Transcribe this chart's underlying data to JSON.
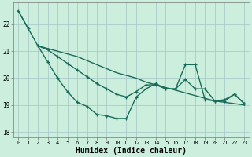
{
  "bg_color": "#cceedd",
  "grid_color": "#aacccc",
  "line_color": "#1a6b5a",
  "xlabel": "Humidex (Indice chaleur)",
  "xlim": [
    -0.5,
    23.5
  ],
  "ylim": [
    17.8,
    22.8
  ],
  "yticks": [
    18,
    19,
    20,
    21,
    22
  ],
  "xticks": [
    0,
    1,
    2,
    3,
    4,
    5,
    6,
    7,
    8,
    9,
    10,
    11,
    12,
    13,
    14,
    15,
    16,
    17,
    18,
    19,
    20,
    21,
    22,
    23
  ],
  "series": [
    {
      "x": [
        0,
        1,
        2,
        3,
        4,
        5,
        6,
        7,
        8,
        9,
        10,
        11,
        12,
        13,
        14,
        15,
        16,
        17,
        18,
        19,
        20,
        21,
        22,
        23
      ],
      "y": [
        22.5,
        21.85,
        21.2,
        21.1,
        21.0,
        20.9,
        20.8,
        20.65,
        20.5,
        20.35,
        20.2,
        20.1,
        20.0,
        19.85,
        19.75,
        19.65,
        19.55,
        19.45,
        19.35,
        19.25,
        19.15,
        19.1,
        19.05,
        19.0
      ],
      "markers": false,
      "linewidth": 1.0
    },
    {
      "x": [
        2,
        3,
        4,
        5,
        6,
        7,
        8,
        9,
        10,
        11,
        12,
        13,
        14,
        15,
        16,
        17,
        18,
        19,
        20,
        21,
        22,
        23
      ],
      "y": [
        21.2,
        21.05,
        20.8,
        20.55,
        20.3,
        20.05,
        19.8,
        19.6,
        19.4,
        19.3,
        19.5,
        19.75,
        19.75,
        19.6,
        19.6,
        20.5,
        20.5,
        19.2,
        19.15,
        19.2,
        19.4,
        19.05
      ],
      "markers": true,
      "linewidth": 1.0
    },
    {
      "x": [
        2,
        3,
        4,
        5,
        6,
        7,
        8,
        9,
        10,
        11,
        12,
        13,
        14,
        15,
        16,
        17,
        18,
        19,
        20,
        21,
        22,
        23
      ],
      "y": [
        21.2,
        20.6,
        20.0,
        19.5,
        19.1,
        18.95,
        18.65,
        18.6,
        18.5,
        18.5,
        19.3,
        19.6,
        19.8,
        19.6,
        19.6,
        19.95,
        19.6,
        19.6,
        19.15,
        19.15,
        19.4,
        19.05
      ],
      "markers": true,
      "linewidth": 1.0
    }
  ],
  "title_fontsize": 7,
  "axis_fontsize": 6,
  "xlabel_fontsize": 7
}
